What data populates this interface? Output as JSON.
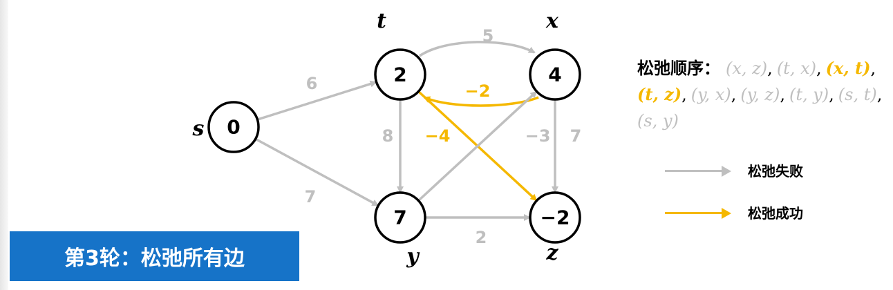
{
  "banner": {
    "text": "第3轮：松弛所有边",
    "color": "#1673c8"
  },
  "colors": {
    "failed": "#bfbfbf",
    "success": "#f5b800",
    "node_stroke": "#000000"
  },
  "nodes": [
    {
      "id": "s",
      "label": "s",
      "value": "0"
    },
    {
      "id": "t",
      "label": "t",
      "value": "2"
    },
    {
      "id": "x",
      "label": "x",
      "value": "4"
    },
    {
      "id": "y",
      "label": "y",
      "value": "7"
    },
    {
      "id": "z",
      "label": "z",
      "value": "−2"
    }
  ],
  "edges": [
    {
      "from": "s",
      "to": "t",
      "weight": "6",
      "status": "failed"
    },
    {
      "from": "s",
      "to": "y",
      "weight": "7",
      "status": "failed"
    },
    {
      "from": "t",
      "to": "x",
      "weight": "5",
      "status": "failed"
    },
    {
      "from": "x",
      "to": "t",
      "weight": "−2",
      "status": "success"
    },
    {
      "from": "t",
      "to": "y",
      "weight": "8",
      "status": "failed"
    },
    {
      "from": "t",
      "to": "z",
      "weight": "−4",
      "status": "success"
    },
    {
      "from": "y",
      "to": "x",
      "weight": "−3",
      "status": "failed"
    },
    {
      "from": "x",
      "to": "z",
      "weight": "7",
      "status": "failed"
    },
    {
      "from": "y",
      "to": "z",
      "weight": "2",
      "status": "failed"
    }
  ],
  "relax_order": {
    "title": "松弛顺序：",
    "items": [
      {
        "text": "(x, z)",
        "status": "failed"
      },
      {
        "text": "(t, x)",
        "status": "failed"
      },
      {
        "text": "(x, t)",
        "status": "success"
      },
      {
        "text": "(t, z)",
        "status": "success"
      },
      {
        "text": "(y, x)",
        "status": "failed"
      },
      {
        "text": "(y, z)",
        "status": "failed"
      },
      {
        "text": "(t, y)",
        "status": "failed"
      },
      {
        "text": "(s, t)",
        "status": "failed"
      },
      {
        "text": "(s, y)",
        "status": "failed"
      }
    ]
  },
  "legend": [
    {
      "label": "松弛失败",
      "status": "failed"
    },
    {
      "label": "松弛成功",
      "status": "success"
    }
  ]
}
